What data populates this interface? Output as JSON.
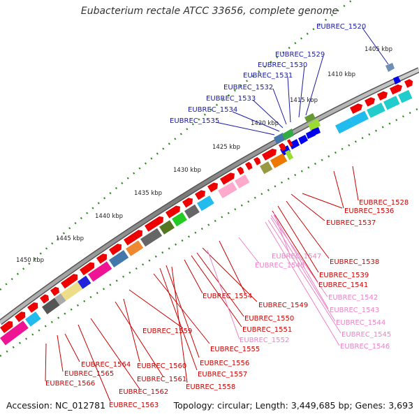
{
  "title": "Eubacterium rectale ATCC 33656, complete genome",
  "accession": "Accession: NC_012781",
  "summary": "Topology: circular; Length: 3,449,685 bp; Genes: 3,693",
  "colors": {
    "plus_label": "#1a1aa6",
    "minus_label": "#cc0000",
    "rna_label": "#ee82c8",
    "kbp_tick": "#2e8b1e"
  },
  "kbp_labels": [
    "1405 kbp",
    "1410 kbp",
    "1415 kbp",
    "1420 kbp",
    "1425 kbp",
    "1430 kbp",
    "1435 kbp",
    "1440 kbp",
    "1445 kbp",
    "1450 kbp"
  ],
  "gene_labels": [
    {
      "id": "EUBREC_1520",
      "color": "#1a1aa6"
    },
    {
      "id": "EUBREC_1529",
      "color": "#1a1aa6"
    },
    {
      "id": "EUBREC_1530",
      "color": "#1a1aa6"
    },
    {
      "id": "EUBREC_1531",
      "color": "#1a1aa6"
    },
    {
      "id": "EUBREC_1532",
      "color": "#1a1aa6"
    },
    {
      "id": "EUBREC_1533",
      "color": "#1a1aa6"
    },
    {
      "id": "EUBREC_1534",
      "color": "#1a1aa6"
    },
    {
      "id": "EUBREC_1535",
      "color": "#1a1aa6"
    },
    {
      "id": "EUBREC_1528",
      "color": "#cc0000"
    },
    {
      "id": "EUBREC_1536",
      "color": "#cc0000"
    },
    {
      "id": "EUBREC_1537",
      "color": "#cc0000"
    },
    {
      "id": "EUBREC_1547",
      "color": "#ee82c8"
    },
    {
      "id": "EUBREC_1548",
      "color": "#ee82c8"
    },
    {
      "id": "EUBREC_1538",
      "color": "#cc0000"
    },
    {
      "id": "EUBREC_1539",
      "color": "#cc0000"
    },
    {
      "id": "EUBREC_1541",
      "color": "#cc0000"
    },
    {
      "id": "EUBREC_1542",
      "color": "#ee82c8"
    },
    {
      "id": "EUBREC_1543",
      "color": "#ee82c8"
    },
    {
      "id": "EUBREC_1544",
      "color": "#ee82c8"
    },
    {
      "id": "EUBREC_1545",
      "color": "#ee82c8"
    },
    {
      "id": "EUBREC_1546",
      "color": "#ee82c8"
    },
    {
      "id": "EUBREC_1554",
      "color": "#cc0000"
    },
    {
      "id": "EUBREC_1549",
      "color": "#cc0000"
    },
    {
      "id": "EUBREC_1550",
      "color": "#cc0000"
    },
    {
      "id": "EUBREC_1551",
      "color": "#cc0000"
    },
    {
      "id": "EUBREC_1552",
      "color": "#ee82c8"
    },
    {
      "id": "EUBREC_1559",
      "color": "#cc0000"
    },
    {
      "id": "EUBREC_1555",
      "color": "#cc0000"
    },
    {
      "id": "EUBREC_1556",
      "color": "#cc0000"
    },
    {
      "id": "EUBREC_1557",
      "color": "#cc0000"
    },
    {
      "id": "EUBREC_1558",
      "color": "#cc0000"
    },
    {
      "id": "EUBREC_1564",
      "color": "#cc0000"
    },
    {
      "id": "EUBREC_1560",
      "color": "#cc0000"
    },
    {
      "id": "EUBREC_1565",
      "color": "#cc0000"
    },
    {
      "id": "EUBREC_1561",
      "color": "#cc0000"
    },
    {
      "id": "EUBREC_1566",
      "color": "#cc0000"
    },
    {
      "id": "EUBREC_1562",
      "color": "#cc0000"
    },
    {
      "id": "EUBREC_1563",
      "color": "#cc0000"
    }
  ]
}
